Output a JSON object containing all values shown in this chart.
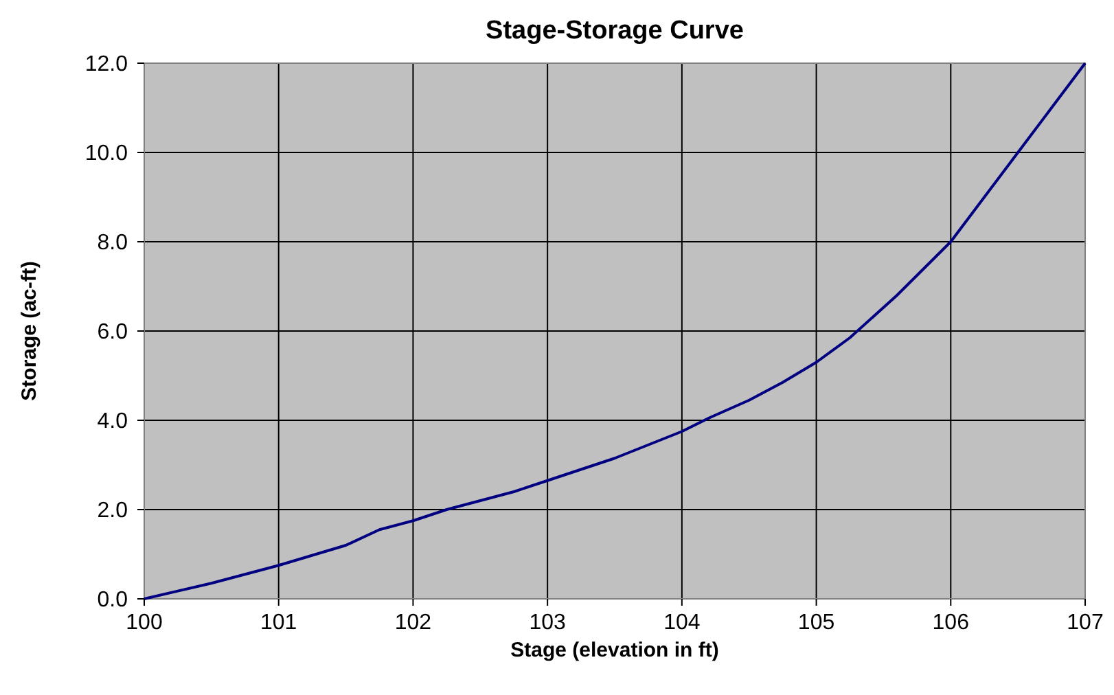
{
  "chart_data": {
    "type": "line",
    "title": "Stage-Storage Curve",
    "xlabel": "Stage (elevation in ft)",
    "ylabel": "Storage (ac-ft)",
    "xlim": [
      100,
      107
    ],
    "ylim": [
      0,
      12
    ],
    "xticks": [
      100,
      101,
      102,
      103,
      104,
      105,
      106,
      107
    ],
    "yticks": [
      {
        "value": 0,
        "label": "0.0"
      },
      {
        "value": 2,
        "label": "2.0"
      },
      {
        "value": 4,
        "label": "4.0"
      },
      {
        "value": 6,
        "label": "6.0"
      },
      {
        "value": 8,
        "label": "8.0"
      },
      {
        "value": 10,
        "label": "10.0"
      },
      {
        "value": 12,
        "label": "12.0"
      }
    ],
    "grid": true,
    "series": [
      {
        "color": "#000080",
        "x": [
          100,
          100.5,
          101,
          101.5,
          101.75,
          102,
          102.25,
          102.75,
          103,
          103.5,
          104,
          104.2,
          104.5,
          104.75,
          105,
          105.25,
          105.6,
          106,
          106.5,
          107
        ],
        "values": [
          0,
          0.35,
          0.75,
          1.2,
          1.55,
          1.75,
          2.0,
          2.4,
          2.65,
          3.15,
          3.75,
          4.05,
          4.45,
          4.85,
          5.3,
          5.85,
          6.8,
          8.0,
          10.0,
          12.0
        ]
      }
    ]
  }
}
